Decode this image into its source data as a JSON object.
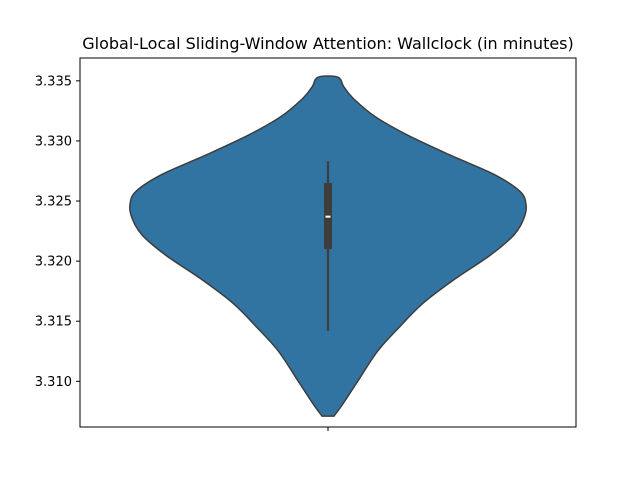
{
  "chart_data": {
    "type": "violin",
    "title": "Global-Local Sliding-Window Attention: Wallclock (in minutes)",
    "xlabel": "",
    "ylabel": "",
    "ylim": [
      3.3062,
      3.3369
    ],
    "yticks": [
      3.31,
      3.315,
      3.32,
      3.325,
      3.33,
      3.335
    ],
    "ytick_labels": [
      "3.310",
      "3.315",
      "3.320",
      "3.325",
      "3.330",
      "3.335"
    ],
    "grid": false,
    "legend": "none",
    "fill_color": "#3274a1",
    "edge_color": "#3d3d3d",
    "inner_color": "#3d3d3d",
    "median_color": "#ffffff",
    "violin_extent": [
      3.3071,
      3.3353
    ],
    "density_profile": [
      {
        "y": 3.3071,
        "half_width": 0.03
      },
      {
        "y": 3.308,
        "half_width": 0.07
      },
      {
        "y": 3.31,
        "half_width": 0.15
      },
      {
        "y": 3.3125,
        "half_width": 0.25
      },
      {
        "y": 3.3145,
        "half_width": 0.36
      },
      {
        "y": 3.3165,
        "half_width": 0.48
      },
      {
        "y": 3.3185,
        "half_width": 0.64
      },
      {
        "y": 3.3205,
        "half_width": 0.82
      },
      {
        "y": 3.3222,
        "half_width": 0.94
      },
      {
        "y": 3.3236,
        "half_width": 0.99
      },
      {
        "y": 3.3247,
        "half_width": 1.0
      },
      {
        "y": 3.3258,
        "half_width": 0.97
      },
      {
        "y": 3.3272,
        "half_width": 0.84
      },
      {
        "y": 3.3288,
        "half_width": 0.62
      },
      {
        "y": 3.3305,
        "half_width": 0.4
      },
      {
        "y": 3.332,
        "half_width": 0.24
      },
      {
        "y": 3.3335,
        "half_width": 0.13
      },
      {
        "y": 3.3345,
        "half_width": 0.08
      },
      {
        "y": 3.3353,
        "half_width": 0.05
      }
    ],
    "box": {
      "whisker_low": 3.3142,
      "q1": 3.321,
      "median": 3.3237,
      "q3": 3.3265,
      "whisker_high": 3.3283
    }
  }
}
